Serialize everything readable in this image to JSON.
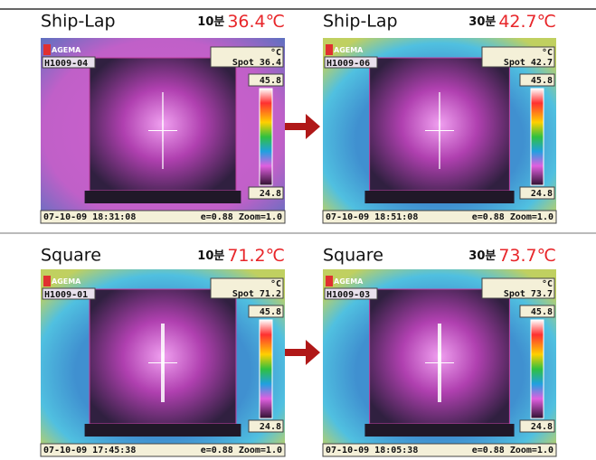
{
  "panels": [
    {
      "title": "Ship-Lap",
      "minutes": "10분",
      "temperature": "36.4℃",
      "logo": "AGEMA",
      "id": "H1009-04",
      "unit": "°C",
      "spot": "Spot 36.4",
      "scale_max": "45.8",
      "scale_min": "24.8",
      "timestamp": "07-10-09 18:31:08",
      "params": "e=0.88 Zoom=1.0"
    },
    {
      "title": "Ship-Lap",
      "minutes": "30분",
      "temperature": "42.7℃",
      "logo": "AGEMA",
      "id": "H1009-06",
      "unit": "°C",
      "spot": "Spot 42.7",
      "scale_max": "45.8",
      "scale_min": "24.8",
      "timestamp": "07-10-09 18:51:08",
      "params": "e=0.88 Zoom=1.0"
    },
    {
      "title": "Square",
      "minutes": "10분",
      "temperature": "71.2℃",
      "logo": "AGEMA",
      "id": "H1009-01",
      "unit": "°C",
      "spot": "Spot 71.2",
      "scale_max": "45.8",
      "scale_min": "24.8",
      "timestamp": "07-10-09 17:45:38",
      "params": "e=0.88 Zoom=1.0"
    },
    {
      "title": "Square",
      "minutes": "30분",
      "temperature": "73.7℃",
      "logo": "AGEMA",
      "id": "H1009-03",
      "unit": "°C",
      "spot": "Spot 73.7",
      "scale_max": "45.8",
      "scale_min": "24.8",
      "timestamp": "07-10-09 18:05:38",
      "params": "e=0.88 Zoom=1.0"
    }
  ]
}
